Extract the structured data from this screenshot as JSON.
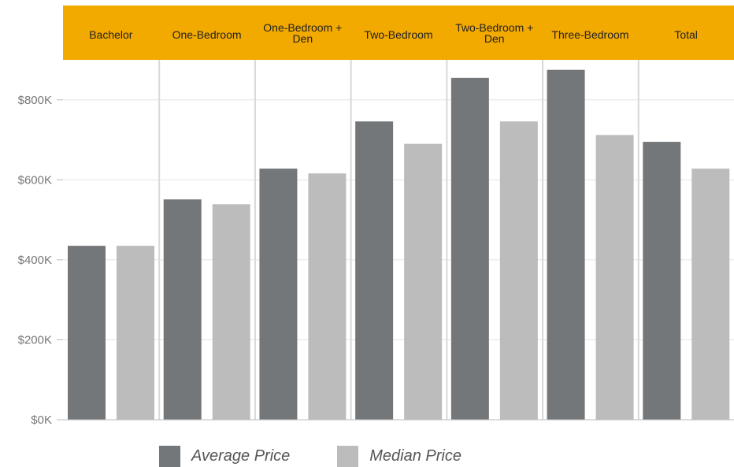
{
  "chart_data": {
    "type": "bar",
    "categories": [
      "Bachelor",
      "One-Bedroom",
      "One-Bedroom + Den",
      "Two-Bedroom",
      "Two-Bedroom + Den",
      "Three-Bedroom",
      "Total"
    ],
    "category_lines": [
      [
        "Bachelor"
      ],
      [
        "One-Bedroom"
      ],
      [
        "One-Bedroom +",
        "Den"
      ],
      [
        "Two-Bedroom"
      ],
      [
        "Two-Bedroom +",
        "Den"
      ],
      [
        "Three-Bedroom"
      ],
      [
        "Total"
      ]
    ],
    "series": [
      {
        "name": "Average Price",
        "color": "#74777a",
        "values": [
          435000,
          551000,
          628000,
          746000,
          855000,
          875000,
          695000
        ]
      },
      {
        "name": "Median Price",
        "color": "#bbbcbb",
        "values": [
          435000,
          539000,
          616000,
          690000,
          746000,
          712000,
          628000
        ]
      }
    ],
    "y_ticks": [
      0,
      200000,
      400000,
      600000,
      800000
    ],
    "y_tick_labels": [
      "$0K",
      "$200K",
      "$400K",
      "$600K",
      "$800K"
    ],
    "ylim": [
      0,
      900000
    ],
    "grid": true,
    "legend_position": "bottom",
    "header_color": "#f2a900"
  }
}
